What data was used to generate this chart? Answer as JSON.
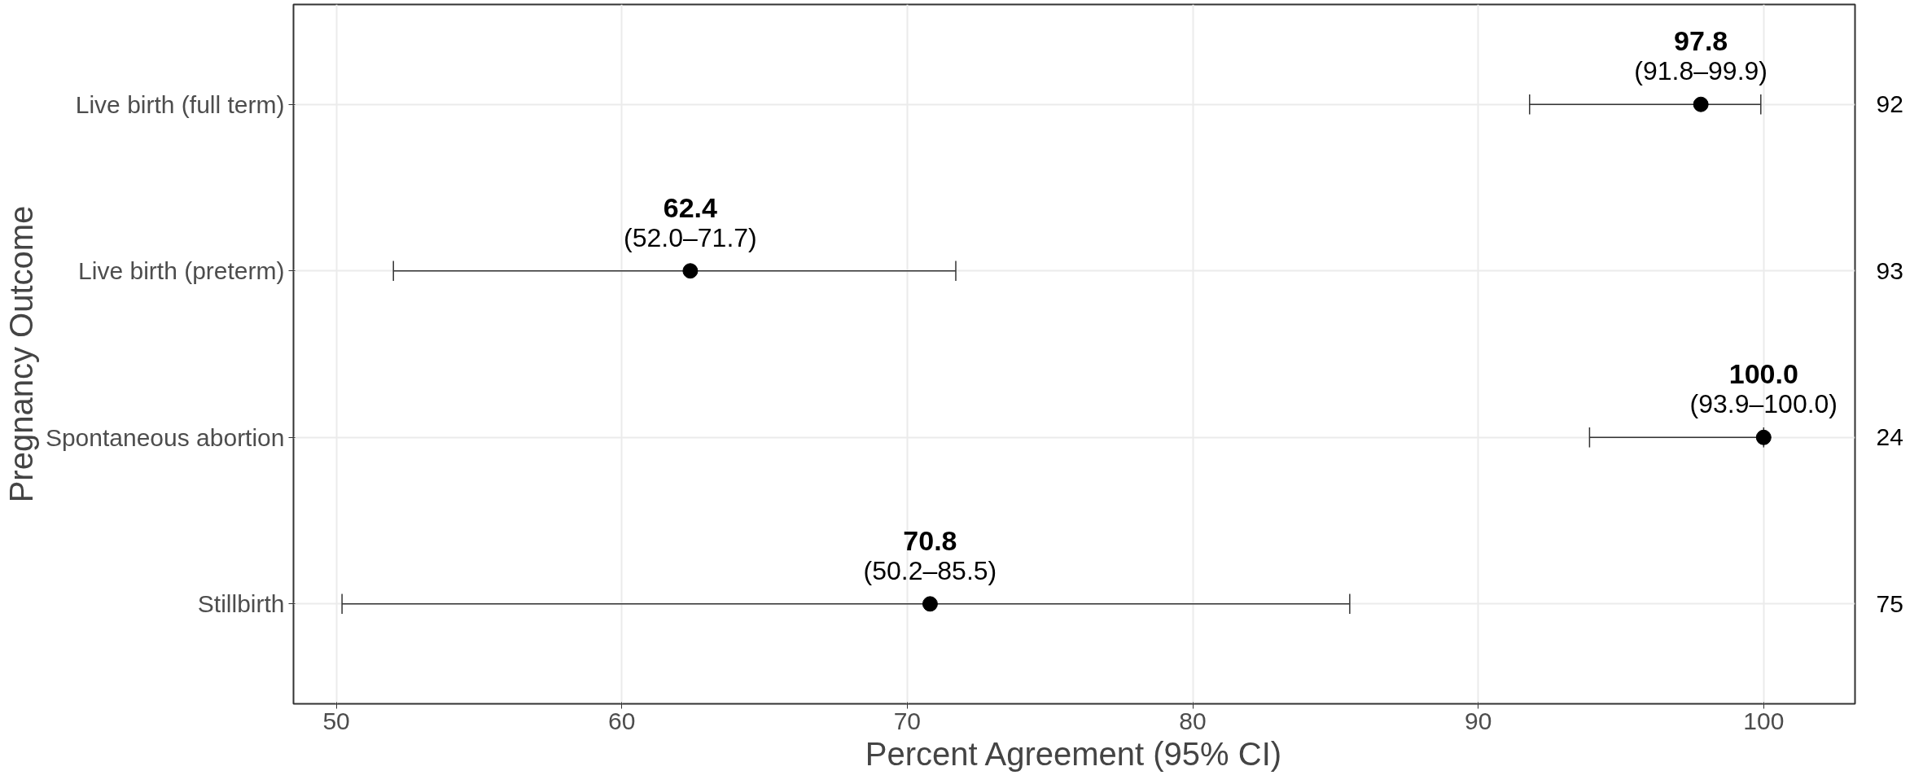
{
  "chart_data": {
    "type": "scatter",
    "orientation": "horizontal",
    "xlabel": "Percent Agreement (95% CI)",
    "ylabel": "Pregnancy Outcome",
    "categories": [
      "Live birth (full term)",
      "Live birth (preterm)",
      "Spontaneous abortion",
      "Stillbirth"
    ],
    "values": [
      97.8,
      62.4,
      100.0,
      70.8
    ],
    "errors": [
      [
        91.8,
        99.9
      ],
      [
        52.0,
        71.7
      ],
      [
        93.9,
        100.0
      ],
      [
        50.2,
        85.5
      ]
    ],
    "value_labels": [
      "97.8",
      "62.4",
      "100.0",
      "70.8"
    ],
    "color": "#000000",
    "marker": "circle",
    "xlim": [
      48.5,
      103.2
    ],
    "xticks": [
      50,
      60,
      70,
      80,
      90,
      100
    ],
    "grid": true,
    "annotations": [
      {
        "text": "(91.8–99.9)",
        "x": 97.8,
        "y": "Live birth (full term)"
      },
      {
        "text": "(52.0–71.7)",
        "x": 62.4,
        "y": "Live birth (preterm)"
      },
      {
        "text": "(93.9–100.0)",
        "x": 100.0,
        "y": "Spontaneous abortion"
      },
      {
        "text": "(50.2–85.5)",
        "x": 70.8,
        "y": "Stillbirth"
      },
      "92",
      "93",
      "24",
      "75"
    ]
  }
}
